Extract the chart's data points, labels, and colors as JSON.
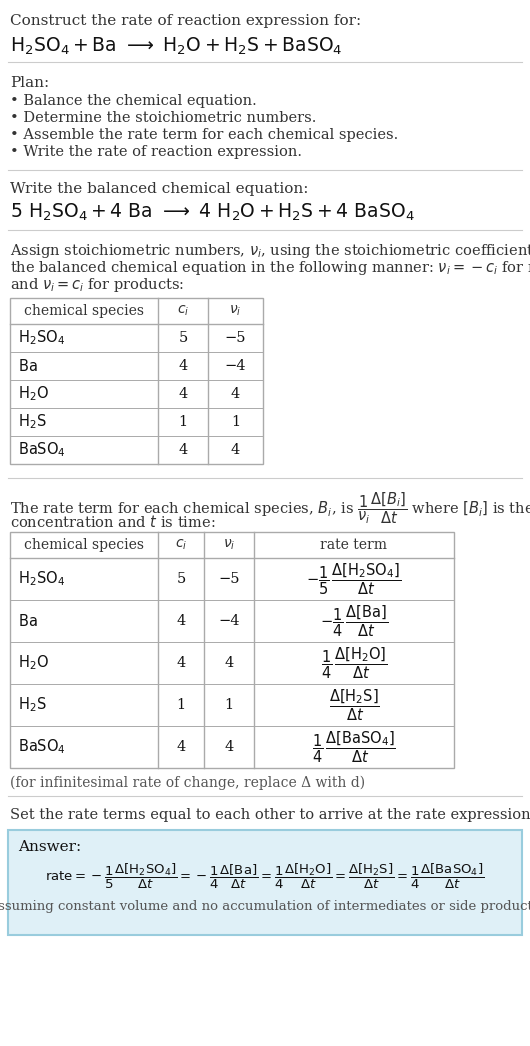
{
  "bg_color": "#ffffff",
  "text_color": "#1a1a1a",
  "gray_text": "#555555",
  "table_border": "#aaaaaa",
  "answer_bg": "#dff0f7",
  "answer_border": "#99ccdd",
  "title_line1": "Construct the rate of reaction expression for:",
  "plan_header": "Plan:",
  "plan_items": [
    "• Balance the chemical equation.",
    "• Determine the stoichiometric numbers.",
    "• Assemble the rate term for each chemical species.",
    "• Write the rate of reaction expression."
  ],
  "balanced_header": "Write the balanced chemical equation:",
  "stoich_intro_lines": [
    "Assign stoichiometric numbers, $\\nu_i$, using the stoichiometric coefficients, $c_i$, from",
    "the balanced chemical equation in the following manner: $\\nu_i = -c_i$ for reactants",
    "and $\\nu_i = c_i$ for products:"
  ],
  "table1_species": [
    "H_2SO_4",
    "Ba",
    "H_2O",
    "H_2S",
    "BaSO_4"
  ],
  "table1_ci": [
    "5",
    "4",
    "4",
    "1",
    "4"
  ],
  "table1_nu": [
    "−5",
    "−4",
    "4",
    "1",
    "4"
  ],
  "infinitesimal_note": "(for infinitesimal rate of change, replace Δ with d)",
  "set_equal_text": "Set the rate terms equal to each other to arrive at the rate expression:",
  "answer_label": "Answer:",
  "answer_note": "(assuming constant volume and no accumulation of intermediates or side products)"
}
